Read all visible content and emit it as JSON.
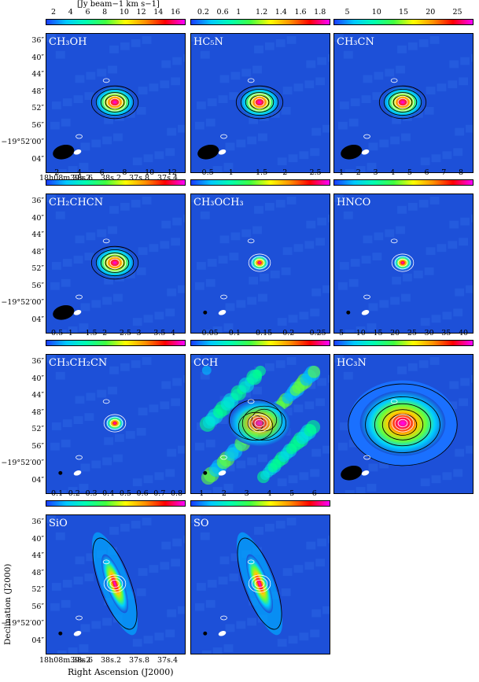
{
  "unit_label": "[Jy beam−1 km s−1]",
  "ra_ticks_top": [
    "18h08m39s.2",
    "38s.6",
    "38s.2",
    "37s.8",
    "37s.4"
  ],
  "ra_ticks_bottom": [
    "18h08m39s.2",
    "38s.6",
    "38s.2",
    "37s.8",
    "37s.4"
  ],
  "dec_ticks": [
    "36″",
    "40″",
    "44″",
    "48″",
    "52″",
    "56″",
    "−19°52′00″",
    "04″"
  ],
  "xlabel": "Right Ascension (J2000)",
  "ylabel": "Declination (J2000)",
  "colors": {
    "bg": "#1a4fd6",
    "bar": [
      "#00ffff",
      "#00ff80",
      "#ffff00",
      "#ff8000",
      "#ff0000",
      "#ff00ff"
    ]
  },
  "panels": [
    {
      "name": "CH3OH",
      "label": "CH₃OH",
      "cb": [
        "2",
        "4",
        "6",
        "8",
        "10",
        "12",
        "14",
        "16"
      ],
      "row": 0,
      "col": 0,
      "kind": "compact",
      "beam": "large"
    },
    {
      "name": "HC5N",
      "label": "HC₅N",
      "cb": [
        "0.2",
        "0.6",
        "1",
        "1.2",
        "1.4",
        "1.6",
        "1.8"
      ],
      "row": 0,
      "col": 1,
      "kind": "compact",
      "beam": "large"
    },
    {
      "name": "CH3CN",
      "label": "CH₃CN",
      "cb": [
        "5",
        "10",
        "15",
        "20",
        "25"
      ],
      "row": 0,
      "col": 2,
      "kind": "compact",
      "beam": "large"
    },
    {
      "name": "CH2CHCN",
      "label": "CH₂CHCN",
      "cb": [
        "2",
        "4",
        "6",
        "8",
        "10",
        "12"
      ],
      "row": 1,
      "col": 0,
      "kind": "compact",
      "beam": "large"
    },
    {
      "name": "CH3OCH3",
      "label": "CH₃OCH₃",
      "cb": [
        "0.5",
        "1",
        "1.5",
        "2",
        "2.5"
      ],
      "row": 1,
      "col": 1,
      "kind": "small",
      "beam": "small"
    },
    {
      "name": "HNCO",
      "label": "HNCO",
      "cb": [
        "1",
        "2",
        "3",
        "4",
        "5",
        "6",
        "7",
        "8"
      ],
      "row": 1,
      "col": 2,
      "kind": "small",
      "beam": "small"
    },
    {
      "name": "CH3CH2CN",
      "label": "CH₃CH₂CN",
      "cb": [
        "0.5",
        "1",
        "1.5",
        "2",
        "2.5",
        "3",
        "3.5",
        "4"
      ],
      "row": 2,
      "col": 0,
      "kind": "small",
      "beam": "small"
    },
    {
      "name": "CCH",
      "label": "CCH",
      "cb": [
        "0.05",
        "0.1",
        "0.15",
        "0.2",
        "0.25"
      ],
      "row": 2,
      "col": 1,
      "kind": "diffuse",
      "beam": "small"
    },
    {
      "name": "HC3N",
      "label": "HC₃N",
      "cb": [
        "5",
        "10",
        "15",
        "20",
        "25",
        "30",
        "35",
        "40"
      ],
      "row": 2,
      "col": 2,
      "kind": "extended",
      "beam": "large"
    },
    {
      "name": "SiO",
      "label": "SiO",
      "cb": [
        "0.1",
        "0.2",
        "0.3",
        "0.4",
        "0.5",
        "0.6",
        "0.7",
        "0.8"
      ],
      "row": 3,
      "col": 0,
      "kind": "outflow",
      "beam": "small"
    },
    {
      "name": "SO",
      "label": "SO",
      "cb": [
        "1",
        "2",
        "3",
        "4",
        "5",
        "6"
      ],
      "row": 3,
      "col": 1,
      "kind": "outflow2",
      "beam": "small"
    }
  ]
}
